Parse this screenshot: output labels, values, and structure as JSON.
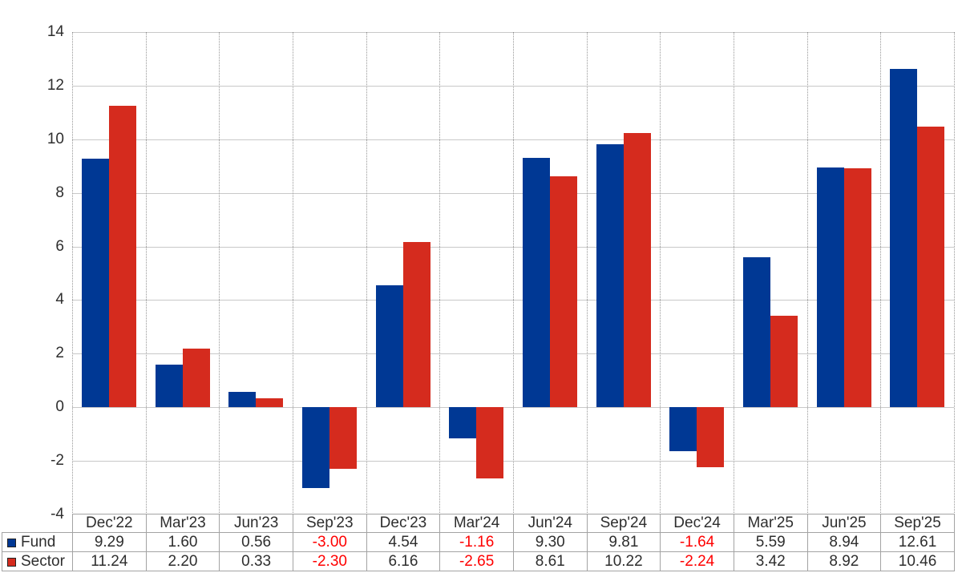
{
  "chart_data": {
    "type": "bar",
    "categories": [
      "Dec'22",
      "Mar'23",
      "Jun'23",
      "Sep'23",
      "Dec'23",
      "Mar'24",
      "Jun'24",
      "Sep'24",
      "Dec'24",
      "Mar'25",
      "Jun'25",
      "Sep'25"
    ],
    "series": [
      {
        "name": "Fund",
        "color": "#003894",
        "values": [
          9.29,
          1.6,
          0.56,
          -3.0,
          4.54,
          -1.16,
          9.3,
          9.81,
          -1.64,
          5.59,
          8.94,
          12.61
        ]
      },
      {
        "name": "Sector",
        "color": "#d52b1e",
        "values": [
          11.24,
          2.2,
          0.33,
          -2.3,
          6.16,
          -2.65,
          8.61,
          10.22,
          -2.24,
          3.42,
          8.92,
          10.46
        ]
      }
    ],
    "title": "",
    "xlabel": "",
    "ylabel": "",
    "ylim": [
      -4,
      14
    ],
    "ytick_step": 2,
    "yticks": [
      14,
      12,
      10,
      8,
      6,
      4,
      2,
      0,
      -2,
      -4
    ],
    "grid": {
      "horizontal": "solid",
      "vertical": "dotted"
    },
    "legend_position": "table-rows-left",
    "value_decimals": 2
  },
  "colors": {
    "fund_bar": "#003894",
    "sector_bar": "#d52b1e",
    "negative_value_text": "#ff0000",
    "h_gridline": "#c8c8c8",
    "v_gridline": "#979797",
    "table_border": "#a3a3a3",
    "text": "#2e2e2e",
    "background": "#ffffff"
  }
}
